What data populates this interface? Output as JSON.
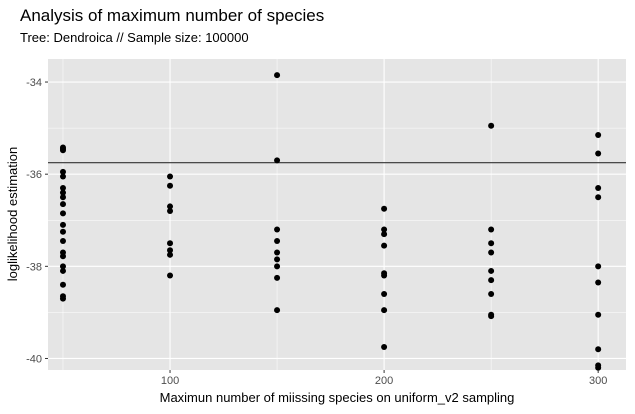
{
  "chart_data": {
    "type": "scatter",
    "title": "Analysis of maximum number of species",
    "subtitle": "Tree: Dendroica // Sample size: 100000",
    "xlabel": "Maximun number of miissing species on uniform_v2 sampling",
    "ylabel": "loglikelihood estimation",
    "xlim": [
      43,
      313
    ],
    "ylim": [
      -40.25,
      -33.5
    ],
    "x_ticks": [
      100,
      200,
      300
    ],
    "y_ticks": [
      -34,
      -36,
      -38,
      -40
    ],
    "hline": -35.75,
    "grid": true,
    "legend": "none",
    "colors": {
      "panel": "#e5e5e5",
      "grid": "#ffffff",
      "point": "#000000",
      "line": "#333333"
    },
    "points": [
      {
        "x": 50,
        "y": -35.42
      },
      {
        "x": 50,
        "y": -35.45
      },
      {
        "x": 50,
        "y": -35.48
      },
      {
        "x": 50,
        "y": -35.95
      },
      {
        "x": 50,
        "y": -36.05
      },
      {
        "x": 50,
        "y": -36.3
      },
      {
        "x": 50,
        "y": -36.4
      },
      {
        "x": 50,
        "y": -36.5
      },
      {
        "x": 50,
        "y": -36.65
      },
      {
        "x": 50,
        "y": -36.85
      },
      {
        "x": 50,
        "y": -37.1
      },
      {
        "x": 50,
        "y": -37.25
      },
      {
        "x": 50,
        "y": -37.45
      },
      {
        "x": 50,
        "y": -37.7
      },
      {
        "x": 50,
        "y": -37.78
      },
      {
        "x": 50,
        "y": -38.0
      },
      {
        "x": 50,
        "y": -38.1
      },
      {
        "x": 50,
        "y": -38.4
      },
      {
        "x": 50,
        "y": -38.65
      },
      {
        "x": 50,
        "y": -38.7
      },
      {
        "x": 100,
        "y": -36.05
      },
      {
        "x": 100,
        "y": -36.25
      },
      {
        "x": 100,
        "y": -36.7
      },
      {
        "x": 100,
        "y": -36.8
      },
      {
        "x": 100,
        "y": -37.5
      },
      {
        "x": 100,
        "y": -37.65
      },
      {
        "x": 100,
        "y": -37.75
      },
      {
        "x": 100,
        "y": -38.2
      },
      {
        "x": 150,
        "y": -33.85
      },
      {
        "x": 150,
        "y": -35.7
      },
      {
        "x": 150,
        "y": -37.2
      },
      {
        "x": 150,
        "y": -37.45
      },
      {
        "x": 150,
        "y": -37.7
      },
      {
        "x": 150,
        "y": -37.85
      },
      {
        "x": 150,
        "y": -38.0
      },
      {
        "x": 150,
        "y": -38.25
      },
      {
        "x": 150,
        "y": -38.95
      },
      {
        "x": 200,
        "y": -36.75
      },
      {
        "x": 200,
        "y": -37.2
      },
      {
        "x": 200,
        "y": -37.3
      },
      {
        "x": 200,
        "y": -37.55
      },
      {
        "x": 200,
        "y": -38.15
      },
      {
        "x": 200,
        "y": -38.2
      },
      {
        "x": 200,
        "y": -38.6
      },
      {
        "x": 200,
        "y": -38.95
      },
      {
        "x": 200,
        "y": -39.75
      },
      {
        "x": 250,
        "y": -34.95
      },
      {
        "x": 250,
        "y": -37.2
      },
      {
        "x": 250,
        "y": -37.5
      },
      {
        "x": 250,
        "y": -37.7
      },
      {
        "x": 250,
        "y": -38.1
      },
      {
        "x": 250,
        "y": -38.3
      },
      {
        "x": 250,
        "y": -38.6
      },
      {
        "x": 250,
        "y": -39.05
      },
      {
        "x": 250,
        "y": -39.08
      },
      {
        "x": 300,
        "y": -35.15
      },
      {
        "x": 300,
        "y": -35.55
      },
      {
        "x": 300,
        "y": -36.3
      },
      {
        "x": 300,
        "y": -36.5
      },
      {
        "x": 300,
        "y": -38.0
      },
      {
        "x": 300,
        "y": -38.35
      },
      {
        "x": 300,
        "y": -39.05
      },
      {
        "x": 300,
        "y": -39.8
      },
      {
        "x": 300,
        "y": -40.15
      },
      {
        "x": 300,
        "y": -40.2
      }
    ]
  }
}
